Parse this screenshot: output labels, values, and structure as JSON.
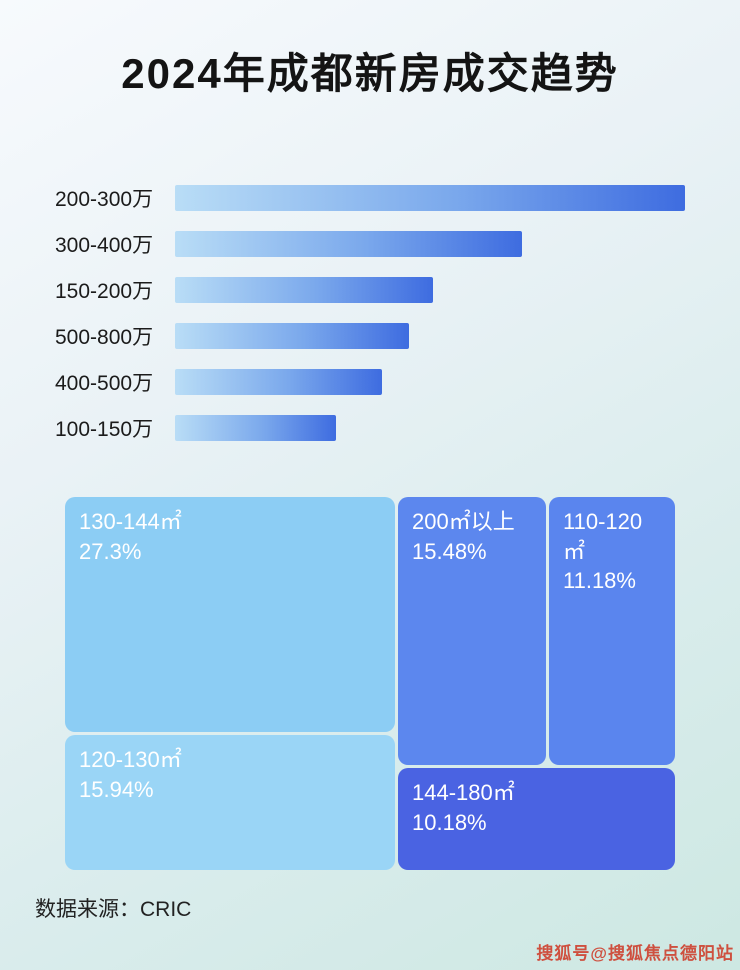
{
  "title": "2024年成都新房成交趋势",
  "footer": {
    "source": "数据来源：CRIC"
  },
  "watermark": "搜狐号@搜狐焦点德阳站",
  "colors": {
    "bar_gradient_start": "#b9ddf6",
    "bar_gradient_end": "#3e6ce0",
    "background_top": "#f7fafd",
    "background_bottom": "#cde8e2"
  },
  "chart_data": [
    {
      "type": "bar",
      "orientation": "horizontal",
      "title": "2024年成都新房成交趋势",
      "categories": [
        "200-300万",
        "300-400万",
        "150-200万",
        "500-800万",
        "400-500万",
        "100-150万"
      ],
      "values": [
        100,
        68,
        50.5,
        45.8,
        40.6,
        31.5
      ],
      "value_unit": "relative length, % of longest bar (no numeric axis shown)",
      "grid": false,
      "legend": false
    },
    {
      "type": "treemap",
      "items": [
        {
          "label": "130-144㎡",
          "percent": "27.3%",
          "value": 27.3,
          "color": "#8ccdf4"
        },
        {
          "label": "200㎡以上",
          "percent": "15.48%",
          "value": 15.48,
          "color": "#5c87ee"
        },
        {
          "label": "110-120㎡",
          "percent": "11.18%",
          "value": 11.18,
          "color": "#5a85ee"
        },
        {
          "label": "120-130㎡",
          "percent": "15.94%",
          "value": 15.94,
          "color": "#9ad5f6"
        },
        {
          "label": "144-180㎡",
          "percent": "10.18%",
          "value": 10.18,
          "color": "#4a63e2"
        }
      ]
    }
  ]
}
